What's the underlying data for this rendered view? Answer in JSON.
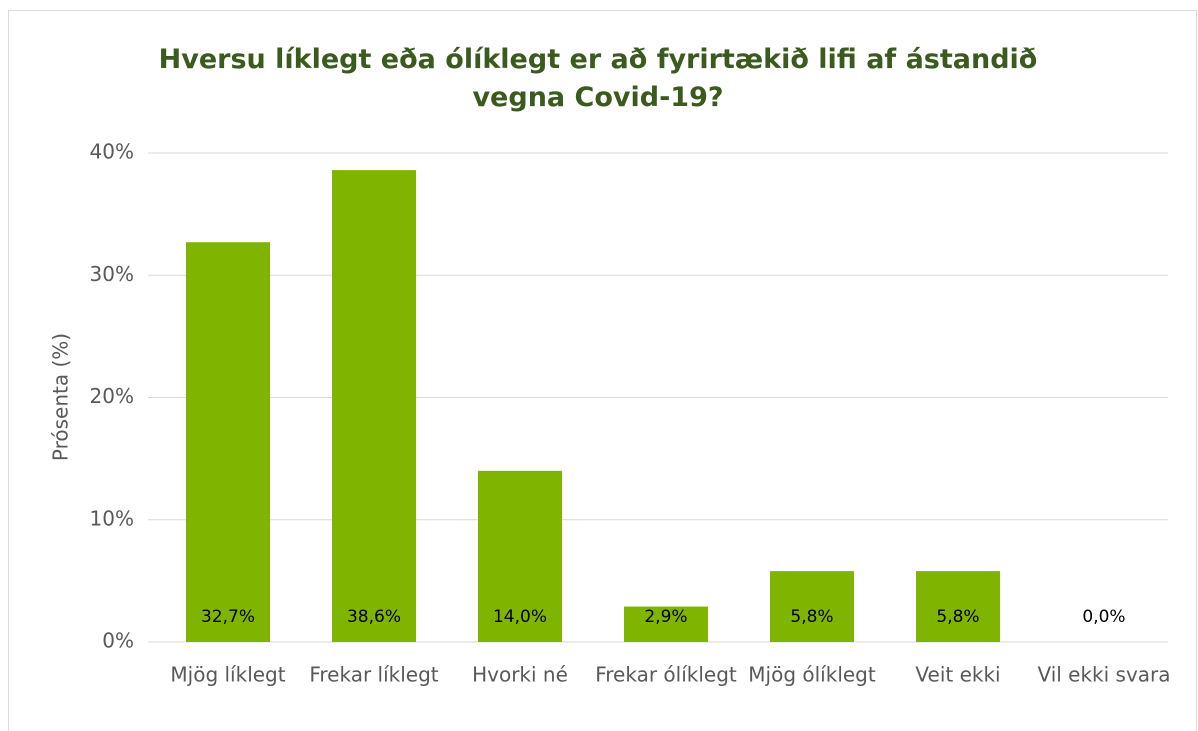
{
  "chart_data": {
    "type": "bar",
    "title": "Hversu líklegt eða ólíklegt er að fyrirtækið lifi af ástandið vegna Covid-19?",
    "y_label": "Prósenta (%)",
    "categories": [
      "Mjög líklegt",
      "Frekar líklegt",
      "Hvorki né",
      "Frekar ólíklegt",
      "Mjög ólíklegt",
      "Veit ekki",
      "Vil ekki svara"
    ],
    "values": [
      32.7,
      38.6,
      14.0,
      2.9,
      5.8,
      5.8,
      0.0
    ],
    "value_labels": [
      "32,7%",
      "38,6%",
      "14,0%",
      "2,9%",
      "5,8%",
      "5,8%",
      "0,0%"
    ],
    "color": "#7fb400",
    "ylim": [
      0,
      40
    ],
    "yticks": [
      {
        "value": 0,
        "label": "0%"
      },
      {
        "value": 10,
        "label": "10%"
      },
      {
        "value": 20,
        "label": "20%"
      },
      {
        "value": 30,
        "label": "30%"
      },
      {
        "value": 40,
        "label": "40%"
      }
    ],
    "grid": true
  }
}
